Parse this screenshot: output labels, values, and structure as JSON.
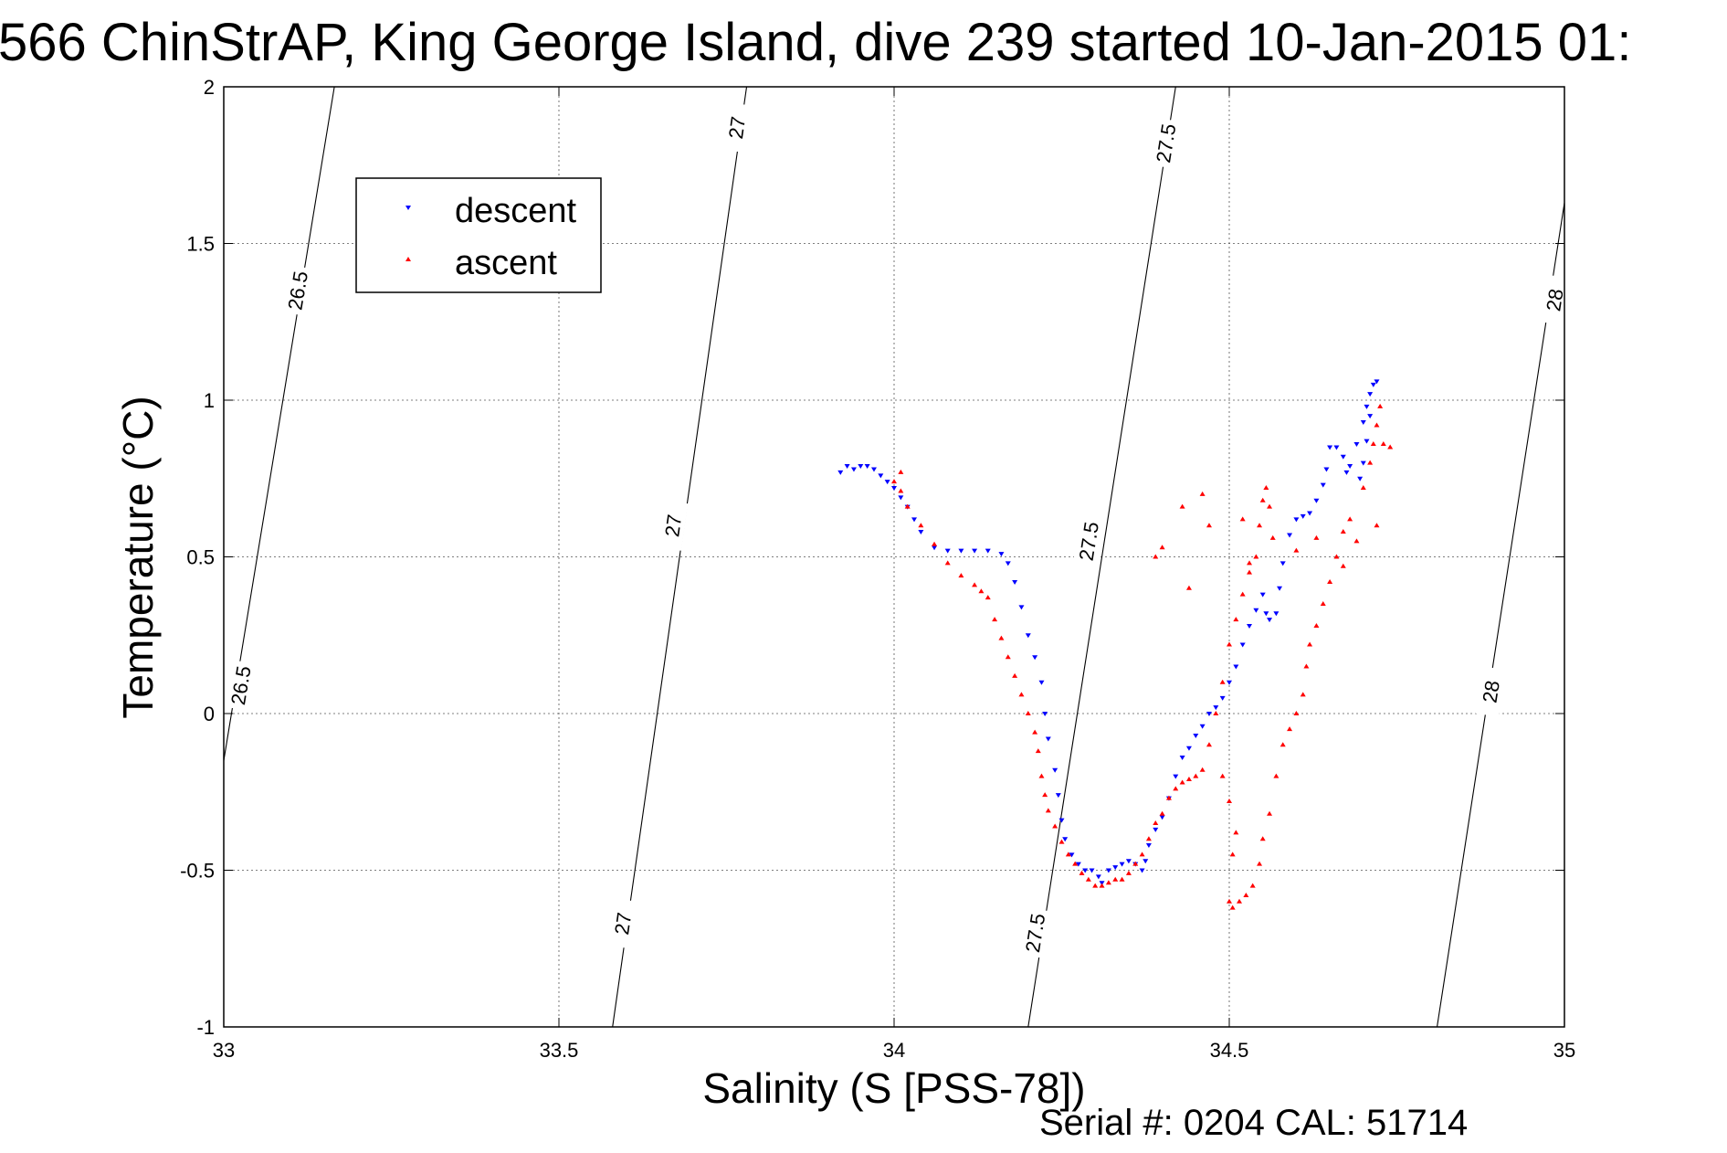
{
  "chart_data": {
    "type": "scatter",
    "title": "566 ChinStrAP, King George Island, dive 239 started 10-Jan-2015 01:",
    "xlabel": "Salinity (S [PSS-78])",
    "ylabel": "Temperature (°C)",
    "xlim": [
      33,
      35
    ],
    "ylim": [
      -1,
      2
    ],
    "xticks": [
      33,
      33.5,
      34,
      34.5,
      35
    ],
    "yticks": [
      -1,
      -0.5,
      0,
      0.5,
      1,
      1.5,
      2
    ],
    "xtick_labels": [
      "33",
      "33.5",
      "34",
      "34.5",
      "35"
    ],
    "ytick_labels": [
      "-1",
      "-0.5",
      "0",
      "0.5",
      "1",
      "1.5",
      "2"
    ],
    "grid": true,
    "legend_position": "top-left",
    "footer": "Serial #: 0204  CAL: 51714",
    "isopycnals": [
      {
        "label": "26.5",
        "points": [
          [
            33.0,
            -0.15
          ],
          [
            33.165,
            2.0
          ]
        ],
        "label_positions": [
          [
            33.11,
            1.35
          ],
          [
            33.025,
            0.09
          ]
        ]
      },
      {
        "label": "27",
        "points": [
          [
            33.58,
            -1.0
          ],
          [
            33.78,
            2.0
          ]
        ],
        "label_positions": [
          [
            33.765,
            1.87
          ],
          [
            33.67,
            0.6
          ],
          [
            33.595,
            -0.67
          ]
        ]
      },
      {
        "label": "27.5",
        "points": [
          [
            34.2,
            -1.0
          ],
          [
            34.42,
            2.0
          ]
        ],
        "label_positions": [
          [
            34.405,
            1.82
          ],
          [
            34.29,
            0.55
          ],
          [
            34.21,
            -0.7
          ]
        ]
      },
      {
        "label": "28",
        "points": [
          [
            34.81,
            -1.0
          ],
          [
            35.0,
            1.63
          ]
        ],
        "label_positions": [
          [
            34.985,
            1.32
          ],
          [
            34.89,
            0.07
          ]
        ]
      }
    ],
    "series": [
      {
        "name": "descent",
        "color": "#0000ff",
        "marker": "triangle-down",
        "points": [
          [
            33.92,
            0.77
          ],
          [
            33.93,
            0.79
          ],
          [
            33.94,
            0.78
          ],
          [
            33.95,
            0.79
          ],
          [
            33.96,
            0.79
          ],
          [
            33.97,
            0.78
          ],
          [
            33.98,
            0.76
          ],
          [
            33.99,
            0.74
          ],
          [
            34.0,
            0.72
          ],
          [
            34.01,
            0.69
          ],
          [
            34.02,
            0.66
          ],
          [
            34.03,
            0.62
          ],
          [
            34.04,
            0.58
          ],
          [
            34.06,
            0.53
          ],
          [
            34.08,
            0.52
          ],
          [
            34.1,
            0.52
          ],
          [
            34.12,
            0.52
          ],
          [
            34.14,
            0.52
          ],
          [
            34.16,
            0.51
          ],
          [
            34.17,
            0.48
          ],
          [
            34.18,
            0.42
          ],
          [
            34.19,
            0.34
          ],
          [
            34.2,
            0.25
          ],
          [
            34.21,
            0.18
          ],
          [
            34.22,
            0.1
          ],
          [
            34.225,
            0.0
          ],
          [
            34.23,
            -0.08
          ],
          [
            34.24,
            -0.18
          ],
          [
            34.245,
            -0.26
          ],
          [
            34.25,
            -0.34
          ],
          [
            34.255,
            -0.4
          ],
          [
            34.265,
            -0.45
          ],
          [
            34.275,
            -0.48
          ],
          [
            34.285,
            -0.5
          ],
          [
            34.295,
            -0.5
          ],
          [
            34.305,
            -0.52
          ],
          [
            34.31,
            -0.54
          ],
          [
            34.32,
            -0.5
          ],
          [
            34.33,
            -0.49
          ],
          [
            34.34,
            -0.48
          ],
          [
            34.35,
            -0.47
          ],
          [
            34.36,
            -0.48
          ],
          [
            34.37,
            -0.5
          ],
          [
            34.375,
            -0.47
          ],
          [
            34.38,
            -0.42
          ],
          [
            34.39,
            -0.37
          ],
          [
            34.4,
            -0.33
          ],
          [
            34.41,
            -0.27
          ],
          [
            34.42,
            -0.2
          ],
          [
            34.43,
            -0.14
          ],
          [
            34.44,
            -0.11
          ],
          [
            34.45,
            -0.07
          ],
          [
            34.46,
            -0.04
          ],
          [
            34.47,
            0.0
          ],
          [
            34.48,
            0.02
          ],
          [
            34.49,
            0.05
          ],
          [
            34.5,
            0.1
          ],
          [
            34.51,
            0.15
          ],
          [
            34.52,
            0.22
          ],
          [
            34.53,
            0.28
          ],
          [
            34.54,
            0.33
          ],
          [
            34.55,
            0.38
          ],
          [
            34.555,
            0.32
          ],
          [
            34.56,
            0.3
          ],
          [
            34.57,
            0.32
          ],
          [
            34.575,
            0.4
          ],
          [
            34.58,
            0.48
          ],
          [
            34.59,
            0.57
          ],
          [
            34.6,
            0.62
          ],
          [
            34.61,
            0.63
          ],
          [
            34.62,
            0.64
          ],
          [
            34.63,
            0.68
          ],
          [
            34.64,
            0.73
          ],
          [
            34.645,
            0.78
          ],
          [
            34.65,
            0.85
          ],
          [
            34.66,
            0.85
          ],
          [
            34.67,
            0.82
          ],
          [
            34.675,
            0.77
          ],
          [
            34.68,
            0.79
          ],
          [
            34.69,
            0.86
          ],
          [
            34.7,
            0.93
          ],
          [
            34.705,
            0.98
          ],
          [
            34.71,
            1.02
          ],
          [
            34.715,
            1.05
          ],
          [
            34.72,
            1.06
          ],
          [
            34.71,
            0.95
          ],
          [
            34.705,
            0.87
          ],
          [
            34.7,
            0.8
          ],
          [
            34.695,
            0.75
          ]
        ]
      },
      {
        "name": "ascent",
        "color": "#ff0000",
        "marker": "triangle-up",
        "points": [
          [
            34.01,
            0.77
          ],
          [
            34.0,
            0.74
          ],
          [
            34.01,
            0.71
          ],
          [
            34.02,
            0.66
          ],
          [
            34.04,
            0.6
          ],
          [
            34.06,
            0.54
          ],
          [
            34.08,
            0.48
          ],
          [
            34.1,
            0.44
          ],
          [
            34.12,
            0.41
          ],
          [
            34.13,
            0.39
          ],
          [
            34.14,
            0.37
          ],
          [
            34.15,
            0.3
          ],
          [
            34.16,
            0.24
          ],
          [
            34.17,
            0.18
          ],
          [
            34.18,
            0.12
          ],
          [
            34.19,
            0.06
          ],
          [
            34.2,
            0.0
          ],
          [
            34.21,
            -0.06
          ],
          [
            34.215,
            -0.12
          ],
          [
            34.22,
            -0.2
          ],
          [
            34.225,
            -0.26
          ],
          [
            34.23,
            -0.31
          ],
          [
            34.24,
            -0.36
          ],
          [
            34.25,
            -0.41
          ],
          [
            34.26,
            -0.45
          ],
          [
            34.27,
            -0.48
          ],
          [
            34.28,
            -0.51
          ],
          [
            34.29,
            -0.53
          ],
          [
            34.3,
            -0.55
          ],
          [
            34.31,
            -0.55
          ],
          [
            34.32,
            -0.54
          ],
          [
            34.33,
            -0.53
          ],
          [
            34.34,
            -0.53
          ],
          [
            34.35,
            -0.51
          ],
          [
            34.36,
            -0.48
          ],
          [
            34.37,
            -0.45
          ],
          [
            34.38,
            -0.4
          ],
          [
            34.39,
            -0.35
          ],
          [
            34.4,
            -0.32
          ],
          [
            34.41,
            -0.27
          ],
          [
            34.42,
            -0.24
          ],
          [
            34.43,
            -0.22
          ],
          [
            34.44,
            -0.21
          ],
          [
            34.45,
            -0.2
          ],
          [
            34.46,
            -0.18
          ],
          [
            34.47,
            -0.1
          ],
          [
            34.48,
            0.0
          ],
          [
            34.49,
            0.1
          ],
          [
            34.5,
            0.22
          ],
          [
            34.51,
            0.3
          ],
          [
            34.52,
            0.38
          ],
          [
            34.53,
            0.45
          ],
          [
            34.54,
            0.5
          ],
          [
            34.545,
            0.6
          ],
          [
            34.55,
            0.68
          ],
          [
            34.555,
            0.72
          ],
          [
            34.56,
            0.66
          ],
          [
            34.565,
            0.56
          ],
          [
            34.49,
            -0.2
          ],
          [
            34.5,
            -0.28
          ],
          [
            34.51,
            -0.38
          ],
          [
            34.505,
            -0.45
          ],
          [
            34.5,
            -0.6
          ],
          [
            34.505,
            -0.62
          ],
          [
            34.515,
            -0.6
          ],
          [
            34.525,
            -0.58
          ],
          [
            34.535,
            -0.55
          ],
          [
            34.545,
            -0.48
          ],
          [
            34.55,
            -0.4
          ],
          [
            34.56,
            -0.32
          ],
          [
            34.57,
            -0.2
          ],
          [
            34.58,
            -0.1
          ],
          [
            34.59,
            -0.05
          ],
          [
            34.6,
            0.0
          ],
          [
            34.61,
            0.06
          ],
          [
            34.615,
            0.15
          ],
          [
            34.62,
            0.22
          ],
          [
            34.63,
            0.28
          ],
          [
            34.64,
            0.35
          ],
          [
            34.65,
            0.42
          ],
          [
            34.66,
            0.5
          ],
          [
            34.67,
            0.58
          ],
          [
            34.68,
            0.62
          ],
          [
            34.69,
            0.55
          ],
          [
            34.7,
            0.72
          ],
          [
            34.71,
            0.8
          ],
          [
            34.715,
            0.86
          ],
          [
            34.72,
            0.92
          ],
          [
            34.725,
            0.98
          ],
          [
            34.73,
            0.86
          ],
          [
            34.74,
            0.85
          ],
          [
            34.46,
            0.7
          ],
          [
            34.43,
            0.66
          ],
          [
            34.39,
            0.5
          ],
          [
            34.4,
            0.53
          ],
          [
            34.44,
            0.4
          ],
          [
            34.47,
            0.6
          ],
          [
            34.52,
            0.62
          ],
          [
            34.53,
            0.48
          ],
          [
            34.6,
            0.52
          ],
          [
            34.63,
            0.56
          ],
          [
            34.67,
            0.47
          ],
          [
            34.72,
            0.6
          ]
        ]
      }
    ]
  }
}
